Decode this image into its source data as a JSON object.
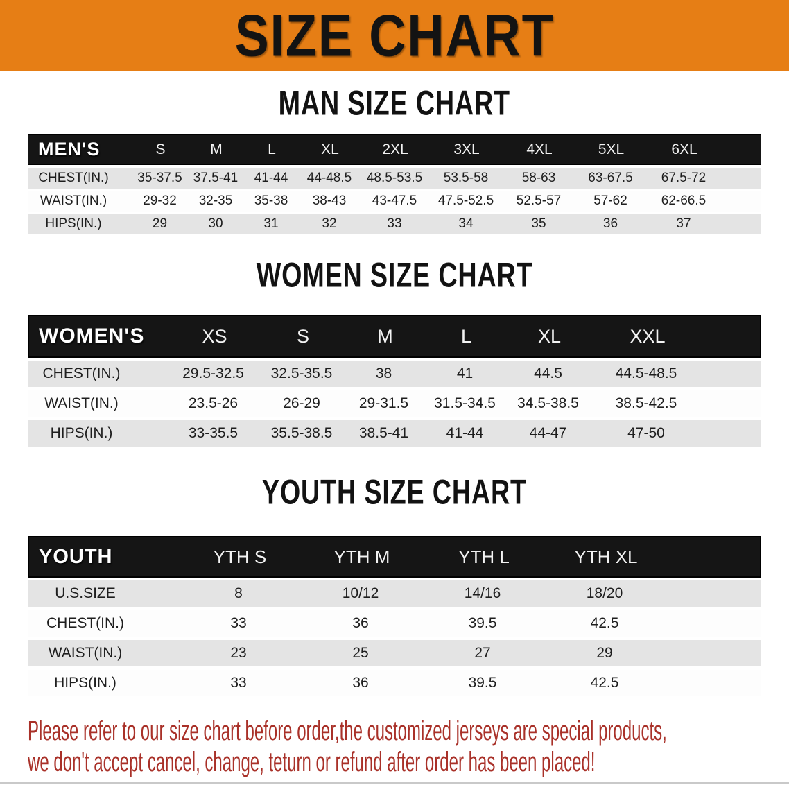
{
  "banner": {
    "title": "SIZE CHART",
    "bg_color": "#E67E15"
  },
  "colors": {
    "table_header_bg": "#151515",
    "row_gray": "#E4E4E4",
    "footer_red": "#A93129"
  },
  "sections": {
    "men": {
      "heading": "MAN SIZE CHART",
      "header_label": "MEN'S",
      "sizes": [
        "S",
        "M",
        "L",
        "XL",
        "2XL",
        "3XL",
        "4XL",
        "5XL",
        "6XL"
      ],
      "rows": [
        {
          "label": "CHEST(IN.)",
          "values": [
            "35-37.5",
            "37.5-41",
            "41-44",
            "44-48.5",
            "48.5-53.5",
            "53.5-58",
            "58-63",
            "63-67.5",
            "67.5-72"
          ]
        },
        {
          "label": "WAIST(IN.)",
          "values": [
            "29-32",
            "32-35",
            "35-38",
            "38-43",
            "43-47.5",
            "47.5-52.5",
            "52.5-57",
            "57-62",
            "62-66.5"
          ]
        },
        {
          "label": "HIPS(IN.)",
          "values": [
            "29",
            "30",
            "31",
            "32",
            "33",
            "34",
            "35",
            "36",
            "37"
          ]
        }
      ]
    },
    "women": {
      "heading": "WOMEN SIZE CHART",
      "header_label": "WOMEN'S",
      "sizes": [
        "XS",
        "S",
        "M",
        "L",
        "XL",
        "XXL"
      ],
      "rows": [
        {
          "label": "CHEST(IN.)",
          "values": [
            "29.5-32.5",
            "32.5-35.5",
            "38",
            "41",
            "44.5",
            "44.5-48.5"
          ]
        },
        {
          "label": "WAIST(IN.)",
          "values": [
            "23.5-26",
            "26-29",
            "29-31.5",
            "31.5-34.5",
            "34.5-38.5",
            "38.5-42.5"
          ]
        },
        {
          "label": "HIPS(IN.)",
          "values": [
            "33-35.5",
            "35.5-38.5",
            "38.5-41",
            "41-44",
            "44-47",
            "47-50"
          ]
        }
      ]
    },
    "youth": {
      "heading": "YOUTH SIZE CHART",
      "header_label": "YOUTH",
      "sizes": [
        "YTH S",
        "YTH M",
        "YTH L",
        "YTH XL"
      ],
      "rows": [
        {
          "label": "U.S.SIZE",
          "values": [
            "8",
            "10/12",
            "14/16",
            "18/20"
          ]
        },
        {
          "label": "CHEST(IN.)",
          "values": [
            "33",
            "36",
            "39.5",
            "42.5"
          ]
        },
        {
          "label": "WAIST(IN.)",
          "values": [
            "23",
            "25",
            "27",
            "29"
          ]
        },
        {
          "label": "HIPS(IN.)",
          "values": [
            "33",
            "36",
            "39.5",
            "42.5"
          ]
        }
      ]
    }
  },
  "footer": {
    "line1": "Please refer to our size chart before order,the customized jerseys are special products,",
    "line2": "we don't accept cancel, change, teturn or refund after order has been placed!"
  }
}
